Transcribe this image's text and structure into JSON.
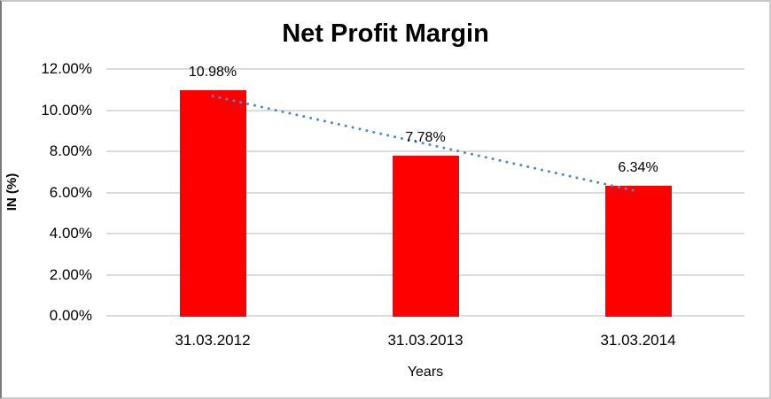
{
  "chart_data": {
    "type": "bar",
    "title": "Net Profit Margin",
    "xlabel": "Years",
    "ylabel": "IN (%)",
    "categories": [
      "31.03.2012",
      "31.03.2013",
      "31.03.2014"
    ],
    "values": [
      10.98,
      7.78,
      6.34
    ],
    "data_labels": [
      "10.98%",
      "7.78%",
      "6.34%"
    ],
    "y_ticks": [
      {
        "label": "12.00%",
        "value": 12
      },
      {
        "label": "10.00%",
        "value": 10
      },
      {
        "label": "8.00%",
        "value": 8
      },
      {
        "label": "6.00%",
        "value": 6
      },
      {
        "label": "4.00%",
        "value": 4
      },
      {
        "label": "2.00%",
        "value": 2
      },
      {
        "label": "0.00%",
        "value": 0
      }
    ],
    "ylim": [
      0,
      12
    ],
    "grid": "horizontal-only",
    "legend": "none",
    "bar_color": "#FF0000",
    "gridline_color": "#DCDCDC",
    "text_color": "#000000",
    "trendline": {
      "type": "linear",
      "style": "dotted",
      "color": "#4E8BC8"
    }
  }
}
